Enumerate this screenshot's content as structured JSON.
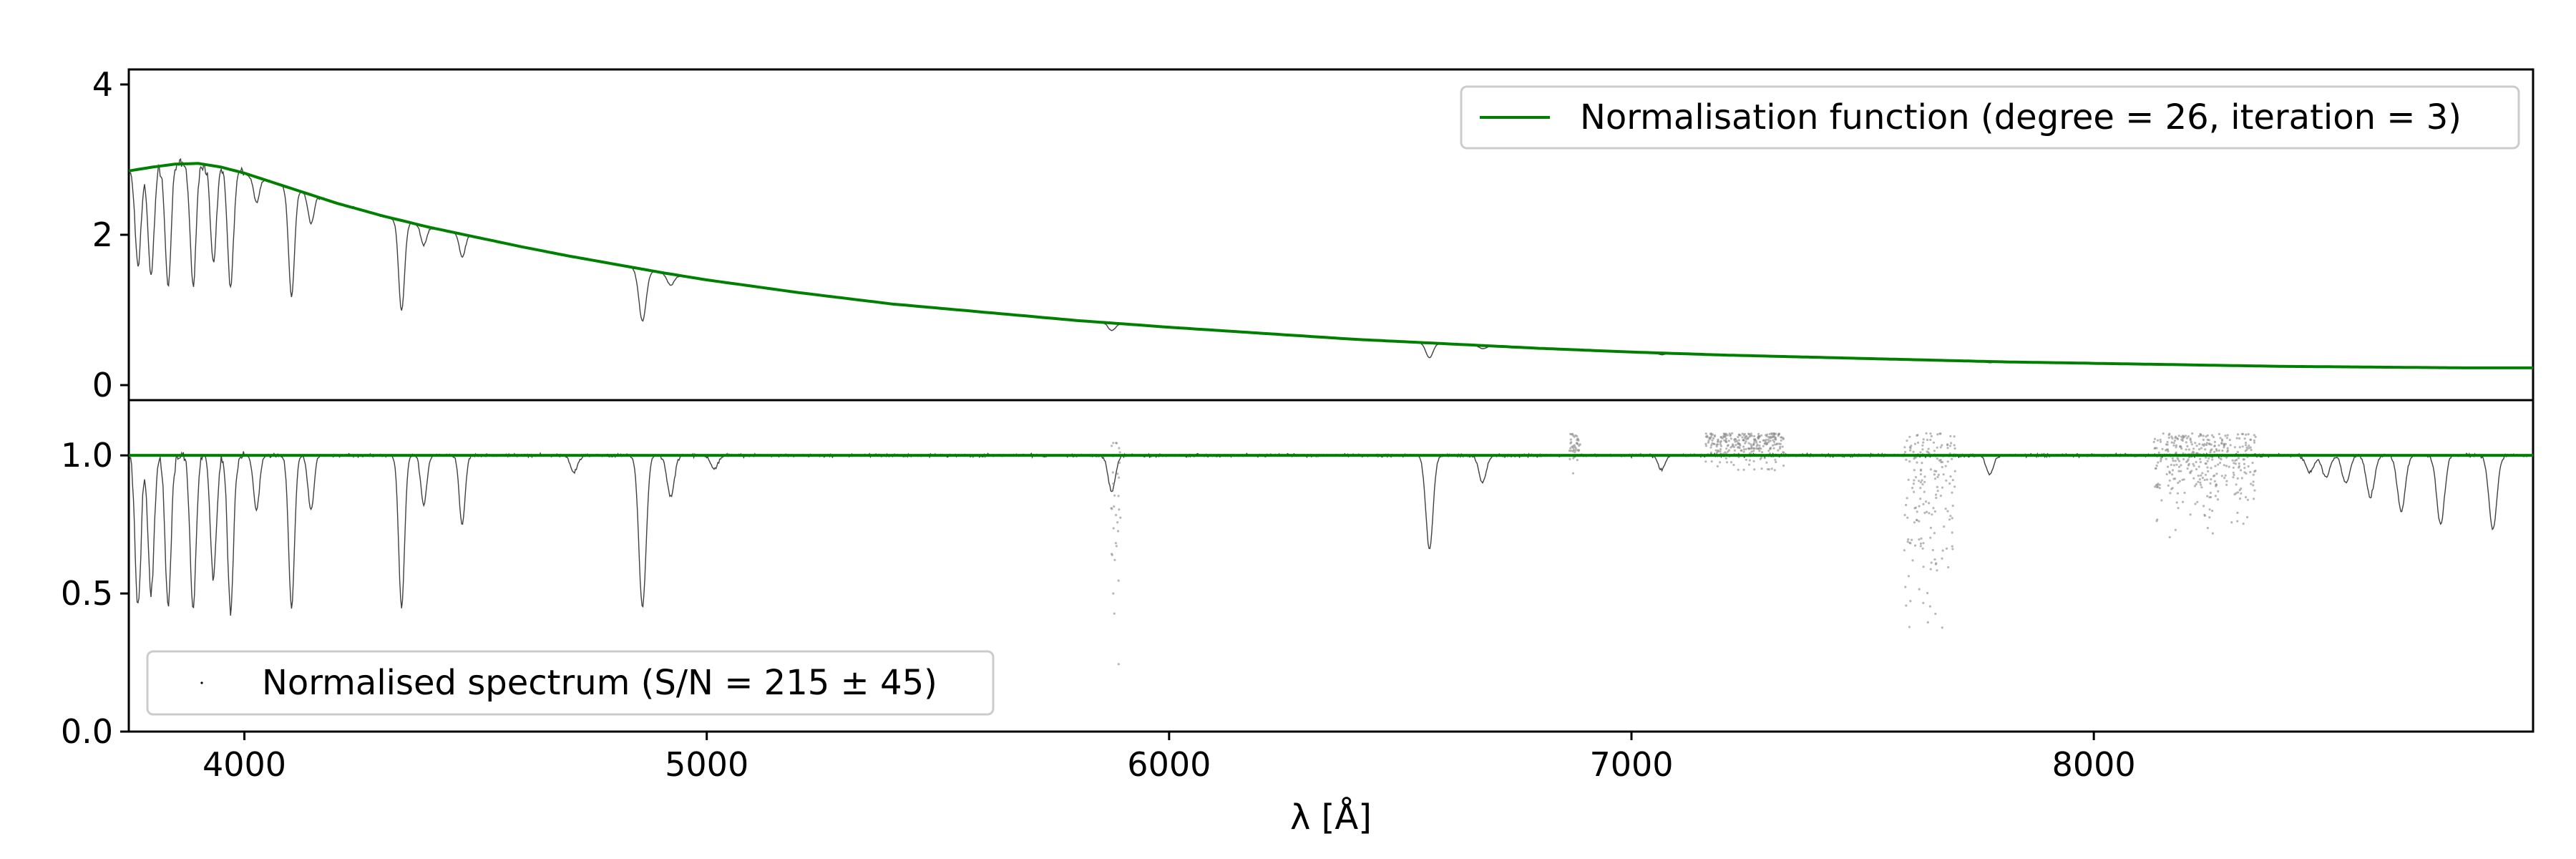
{
  "chart_data": [
    {
      "type": "line",
      "panel": "top",
      "xlim": [
        3750,
        8950
      ],
      "ylim": [
        -0.2,
        4.2
      ],
      "yticks": [
        0,
        2,
        4
      ],
      "grid": false,
      "legend_position": "top-right",
      "series": [
        {
          "name": "Normalisation function (degree = 26, iteration = 3)",
          "color": "#008000",
          "x": [
            3750,
            3800,
            3850,
            3900,
            3950,
            4000,
            4100,
            4200,
            4300,
            4400,
            4500,
            4600,
            4700,
            4800,
            4900,
            5000,
            5200,
            5400,
            5600,
            5800,
            6000,
            6200,
            6400,
            6600,
            6800,
            7000,
            7200,
            7400,
            7600,
            7800,
            8000,
            8200,
            8400,
            8600,
            8800,
            8950
          ],
          "y": [
            2.85,
            2.9,
            2.94,
            2.95,
            2.9,
            2.82,
            2.62,
            2.42,
            2.25,
            2.1,
            1.97,
            1.84,
            1.72,
            1.61,
            1.5,
            1.4,
            1.23,
            1.08,
            0.97,
            0.86,
            0.77,
            0.69,
            0.61,
            0.55,
            0.49,
            0.44,
            0.4,
            0.37,
            0.34,
            0.31,
            0.29,
            0.27,
            0.25,
            0.24,
            0.23,
            0.23
          ]
        },
        {
          "name": "",
          "color": "#000000",
          "role": "spectrum",
          "absorption_lines": [
            {
              "center": 3770,
              "depth": 0.45
            },
            {
              "center": 3798,
              "depth": 0.5
            },
            {
              "center": 3835,
              "depth": 0.55
            },
            {
              "center": 3889,
              "depth": 0.55
            },
            {
              "center": 3933,
              "depth": 0.45
            },
            {
              "center": 3970,
              "depth": 0.55
            },
            {
              "center": 4026,
              "depth": 0.12
            },
            {
              "center": 4102,
              "depth": 0.55
            },
            {
              "center": 4144,
              "depth": 0.15
            },
            {
              "center": 4340,
              "depth": 0.55
            },
            {
              "center": 4388,
              "depth": 0.12
            },
            {
              "center": 4471,
              "depth": 0.15
            },
            {
              "center": 4861,
              "depth": 0.45
            },
            {
              "center": 4922,
              "depth": 0.1
            },
            {
              "center": 5876,
              "depth": 0.12
            },
            {
              "center": 6563,
              "depth": 0.35
            },
            {
              "center": 6678,
              "depth": 0.08
            },
            {
              "center": 7065,
              "depth": 0.05
            },
            {
              "center": 7775,
              "depth": 0.05
            }
          ]
        }
      ]
    },
    {
      "type": "scatter",
      "panel": "bottom",
      "xlim": [
        3750,
        8950
      ],
      "ylim": [
        0.0,
        1.2
      ],
      "xticks": [
        4000,
        5000,
        6000,
        7000,
        8000
      ],
      "yticks": [
        0.0,
        0.5,
        1.0
      ],
      "ytick_labels": [
        "0.0",
        "0.5",
        "1.0"
      ],
      "xlabel": "λ [Å]",
      "grid": false,
      "legend_position": "bottom-left",
      "series": [
        {
          "name": "Normalised spectrum (S/N = 215 ±  45)",
          "color": "#000000",
          "continuum": 1.0,
          "absorption_lines": [
            {
              "center": 3770,
              "depth": 0.55
            },
            {
              "center": 3798,
              "depth": 0.5
            },
            {
              "center": 3835,
              "depth": 0.55
            },
            {
              "center": 3889,
              "depth": 0.55
            },
            {
              "center": 3933,
              "depth": 0.45
            },
            {
              "center": 3970,
              "depth": 0.57
            },
            {
              "center": 4026,
              "depth": 0.2
            },
            {
              "center": 4102,
              "depth": 0.55
            },
            {
              "center": 4144,
              "depth": 0.2
            },
            {
              "center": 4340,
              "depth": 0.55
            },
            {
              "center": 4388,
              "depth": 0.18
            },
            {
              "center": 4471,
              "depth": 0.25
            },
            {
              "center": 4713,
              "depth": 0.06
            },
            {
              "center": 4861,
              "depth": 0.55
            },
            {
              "center": 4922,
              "depth": 0.15
            },
            {
              "center": 5016,
              "depth": 0.05
            },
            {
              "center": 5876,
              "depth": 0.13
            },
            {
              "center": 6563,
              "depth": 0.34
            },
            {
              "center": 6678,
              "depth": 0.1
            },
            {
              "center": 7065,
              "depth": 0.05
            },
            {
              "center": 7775,
              "depth": 0.07
            },
            {
              "center": 8467,
              "depth": 0.06
            },
            {
              "center": 8502,
              "depth": 0.08
            },
            {
              "center": 8545,
              "depth": 0.1
            },
            {
              "center": 8598,
              "depth": 0.15
            },
            {
              "center": 8665,
              "depth": 0.2
            },
            {
              "center": 8750,
              "depth": 0.25
            },
            {
              "center": 8863,
              "depth": 0.27
            }
          ],
          "telluric_regions": [
            {
              "start": 5875,
              "end": 5895,
              "min": 0.1
            },
            {
              "start": 6865,
              "end": 6890,
              "min": 0.9
            },
            {
              "start": 7160,
              "end": 7330,
              "min": 0.92
            },
            {
              "start": 7590,
              "end": 7700,
              "min": 0.25
            },
            {
              "start": 8130,
              "end": 8350,
              "min": 0.65
            }
          ]
        },
        {
          "name": "",
          "color": "#008000",
          "role": "unity-line",
          "x": [
            3750,
            8950
          ],
          "y": [
            1.0,
            1.0
          ]
        }
      ]
    }
  ]
}
